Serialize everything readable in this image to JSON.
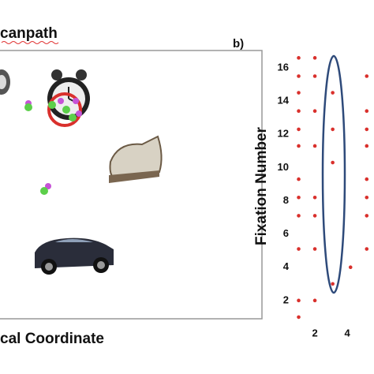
{
  "panel_a": {
    "title": "canpath",
    "x_label": "cal Coordinate"
  },
  "chart_data": {
    "type": "scatter",
    "panel_label": "b)",
    "y_label": "Fixation Number",
    "x": [
      1,
      1,
      1,
      1,
      1,
      1,
      1,
      1,
      1,
      1,
      1,
      1,
      2,
      2,
      2,
      2,
      2,
      2,
      2,
      2,
      3.1,
      3.1,
      3.1,
      3.1,
      4.2,
      5.2,
      5.2,
      5.2,
      5.2,
      5.2,
      5.2,
      5.2,
      5.2
    ],
    "values": [
      16.6,
      15.5,
      14.5,
      13.4,
      12.3,
      11.3,
      9.3,
      8.2,
      7.1,
      5.1,
      2,
      1,
      16.6,
      15.5,
      13.4,
      11.3,
      8.2,
      7.1,
      5.1,
      2,
      14.5,
      12.3,
      10.3,
      3,
      4,
      15.5,
      13.4,
      12.3,
      11.3,
      9.3,
      8.2,
      7.1,
      5.1
    ],
    "color": "#d9302c",
    "xlim": [
      0.95,
      5.6
    ],
    "ylim": [
      0.9,
      16.9
    ],
    "xticks": [
      2,
      4
    ],
    "yticks": [
      2,
      4,
      6,
      8,
      10,
      12,
      14,
      16
    ]
  }
}
